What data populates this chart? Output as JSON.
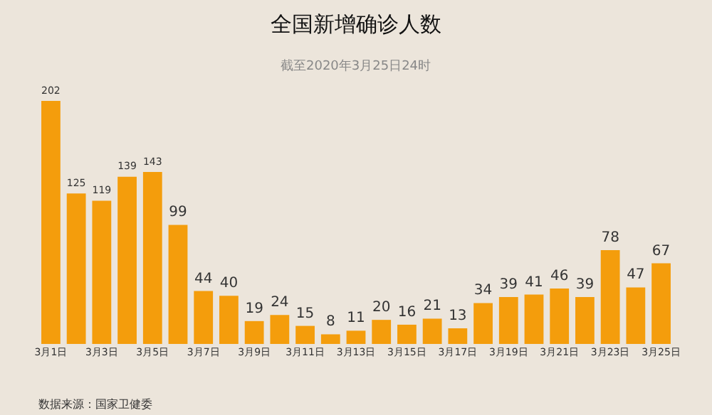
{
  "chart_data": {
    "type": "bar",
    "title": "全国新增确诊人数",
    "subtitle": "截至2020年3月25日24时",
    "categories": [
      "3月1日",
      null,
      "3月3日",
      null,
      "3月5日",
      null,
      "3月7日",
      null,
      "3月9日",
      null,
      "3月11日",
      null,
      "3月13日",
      null,
      "3月15日",
      null,
      "3月17日",
      null,
      "3月19日",
      null,
      "3月21日",
      null,
      "3月23日",
      null,
      "3月25日"
    ],
    "values": [
      202,
      125,
      119,
      139,
      143,
      99,
      44,
      40,
      19,
      24,
      15,
      8,
      11,
      20,
      16,
      21,
      13,
      34,
      39,
      41,
      46,
      39,
      78,
      47,
      67
    ],
    "color": "#f49d0c",
    "data_labels": true,
    "tick_labels": "x",
    "grid": false,
    "legend": false,
    "annotations": [
      "数据来源：国家卫健委"
    ]
  }
}
